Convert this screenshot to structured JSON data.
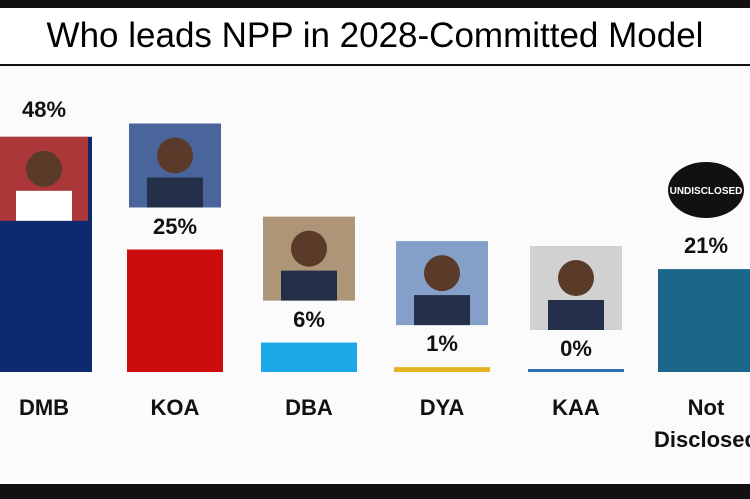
{
  "chart_data": {
    "type": "bar",
    "title": "Who leads NPP in 2028-Committed Model",
    "categories": [
      "DMB",
      "KOA",
      "DBA",
      "DYA",
      "KAA",
      "Not Disclosed"
    ],
    "values": [
      48,
      25,
      6,
      1,
      0,
      21
    ],
    "value_labels": [
      "48%",
      "25%",
      "6%",
      "1%",
      "0%",
      "21%"
    ],
    "colors": [
      "#0d2a6e",
      "#cc0c0c",
      "#1ca8e8",
      "#e6b422",
      "#2a6fb8",
      "#1b6789"
    ],
    "ylim": [
      0,
      60
    ],
    "annotation": "UNDISCLOSED"
  }
}
